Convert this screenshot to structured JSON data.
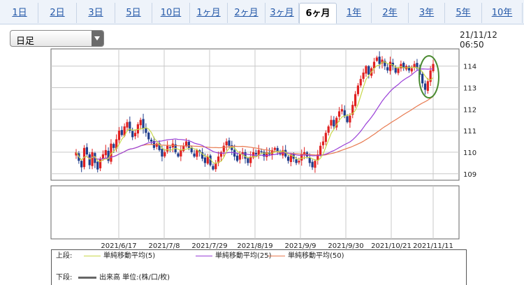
{
  "tabs": [
    {
      "label": "1日",
      "active": false
    },
    {
      "label": "2日",
      "active": false
    },
    {
      "label": "3日",
      "active": false
    },
    {
      "label": "5日",
      "active": false
    },
    {
      "label": "10日",
      "active": false
    },
    {
      "label": "1ヶ月",
      "active": false
    },
    {
      "label": "2ヶ月",
      "active": false
    },
    {
      "label": "3ヶ月",
      "active": false
    },
    {
      "label": "6ヶ月",
      "active": true
    },
    {
      "label": "1年",
      "active": false
    },
    {
      "label": "2年",
      "active": false
    },
    {
      "label": "3年",
      "active": false
    },
    {
      "label": "5年",
      "active": false
    },
    {
      "label": "10年",
      "active": false
    }
  ],
  "period_select": {
    "value": "日足"
  },
  "timestamp": "21/11/12 06:50",
  "legend": {
    "upper_label": "上段:",
    "lower_label": "下段:",
    "ma5": "単純移動平均(5)",
    "ma25": "単純移動平均(25)",
    "ma50": "単純移動平均(50)",
    "volume": "出来高 単位:(株/口/枚)"
  },
  "colors": {
    "up_candle": "#e02020",
    "down_candle": "#1f3d8c",
    "ma5": "#c8d84a",
    "ma25": "#9a40d8",
    "ma50": "#e87a50",
    "volume": "#666666",
    "highlight_ellipse": "#4a8a30"
  },
  "chart_data": {
    "type": "candlestick",
    "ylim": [
      108.7,
      114.8
    ],
    "y_ticks": [
      "114",
      "113",
      "112",
      "111",
      "110",
      "109"
    ],
    "x_tick_labels": [
      "2021/6/17",
      "2021/7/8",
      "2021/7/29",
      "2021/8/19",
      "2021/9/9",
      "2021/9/30",
      "2021/10/21",
      "2021/11/11"
    ],
    "grid": true,
    "annotation": "green ellipse around latest candles",
    "closes": [
      110.0,
      109.6,
      109.3,
      110.2,
      109.9,
      109.4,
      110.0,
      109.5,
      109.2,
      109.7,
      109.9,
      110.1,
      109.6,
      110.4,
      110.2,
      110.6,
      111.0,
      110.8,
      111.2,
      111.4,
      111.0,
      110.7,
      110.9,
      111.3,
      111.5,
      111.1,
      110.9,
      110.6,
      110.5,
      110.2,
      110.4,
      110.1,
      109.8,
      110.0,
      110.3,
      110.2,
      110.4,
      110.0,
      109.8,
      110.1,
      110.3,
      110.5,
      110.2,
      110.0,
      109.8,
      110.1,
      110.0,
      109.7,
      109.5,
      109.8,
      109.4,
      109.2,
      109.5,
      109.8,
      110.0,
      110.3,
      110.5,
      110.3,
      110.1,
      109.8,
      109.6,
      109.9,
      110.0,
      109.7,
      109.5,
      109.8,
      110.0,
      109.9,
      110.1,
      110.0,
      109.8,
      110.0,
      109.9,
      110.1,
      110.2,
      110.0,
      109.9,
      110.1,
      109.8,
      109.6,
      109.9,
      109.7,
      109.5,
      109.6,
      109.9,
      110.0,
      109.8,
      109.5,
      109.3,
      109.6,
      109.9,
      110.3,
      110.5,
      110.9,
      111.2,
      111.5,
      111.2,
      111.6,
      111.9,
      112.0,
      111.7,
      111.4,
      111.7,
      112.2,
      112.7,
      113.1,
      113.4,
      113.7,
      114.0,
      113.6,
      113.9,
      114.2,
      114.4,
      114.1,
      114.3,
      114.0,
      113.8,
      114.2,
      114.0,
      113.7,
      113.9,
      114.1,
      113.9,
      114.0,
      113.8,
      113.9,
      114.1,
      113.9,
      113.6,
      113.2,
      112.9,
      113.3,
      113.8,
      114.1
    ]
  }
}
